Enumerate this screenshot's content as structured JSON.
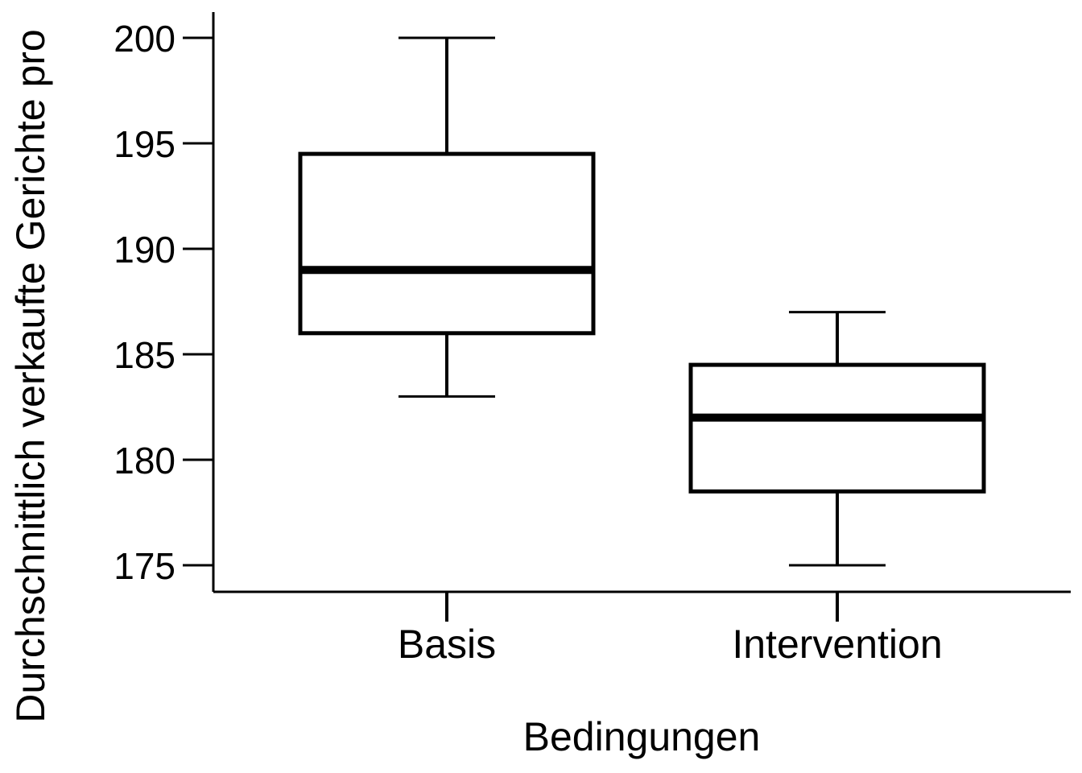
{
  "chart_data": {
    "type": "boxplot",
    "title": "",
    "xlabel": "Bedingungen",
    "ylabel": "Durchschnittlich verkaufte Gerichte pro",
    "ylim": [
      173.8,
      201.2
    ],
    "yticks": [
      200,
      195,
      190,
      185,
      180,
      175
    ],
    "grid": false,
    "categories": [
      "Basis",
      "Intervention"
    ],
    "boxes": [
      {
        "category": "Basis",
        "whisker_low": 183,
        "q1": 186,
        "median": 189,
        "q3": 194.5,
        "whisker_high": 200
      },
      {
        "category": "Intervention",
        "whisker_low": 175,
        "q1": 178.5,
        "median": 182,
        "q3": 184.5,
        "whisker_high": 187
      }
    ],
    "colors": {
      "stroke": "#000000",
      "box_fill": "#ffffff"
    }
  }
}
